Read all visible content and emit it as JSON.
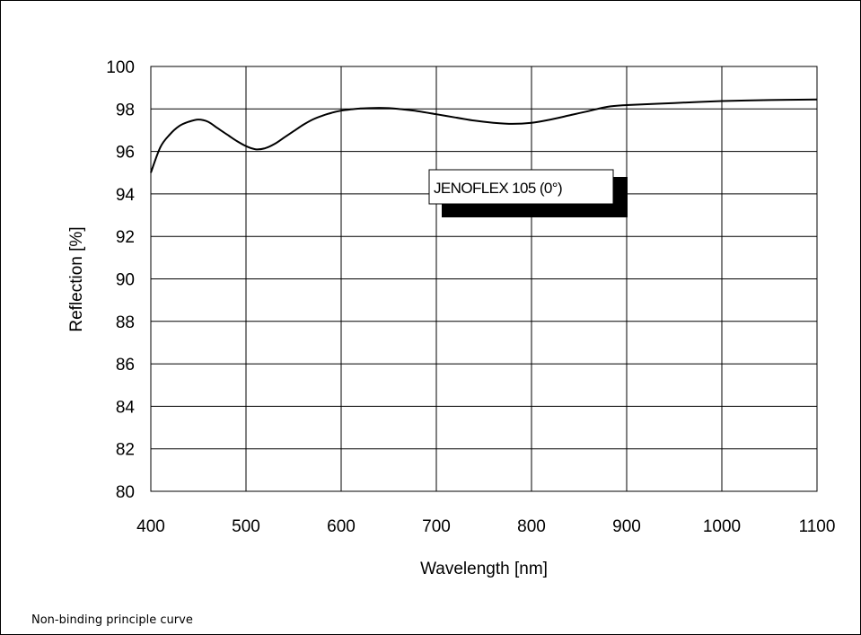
{
  "footnote": "Non-binding principle curve",
  "chart_data": {
    "type": "line",
    "title": "",
    "xlabel": "Wavelength [nm]",
    "ylabel": "Reflection [%]",
    "xlim": [
      400,
      1100
    ],
    "ylim": [
      80,
      100
    ],
    "xticks": [
      400,
      500,
      600,
      700,
      800,
      900,
      1000,
      1100
    ],
    "yticks": [
      80,
      82,
      84,
      86,
      88,
      90,
      92,
      94,
      96,
      98,
      100
    ],
    "grid": true,
    "legend": {
      "placement": "center",
      "entries": [
        "JENOFLEX 105 (0°)"
      ]
    },
    "series": [
      {
        "name": "JENOFLEX 105 (0°)",
        "color": "#000000",
        "x": [
          400,
          410,
          420,
          430,
          440,
          450,
          460,
          470,
          480,
          490,
          500,
          510,
          520,
          530,
          540,
          550,
          560,
          570,
          580,
          590,
          600,
          610,
          620,
          630,
          640,
          650,
          660,
          680,
          700,
          720,
          740,
          760,
          780,
          800,
          820,
          840,
          860,
          880,
          900,
          950,
          1000,
          1050,
          1100
        ],
        "y": [
          95.0,
          96.2,
          96.8,
          97.2,
          97.4,
          97.5,
          97.4,
          97.1,
          96.8,
          96.5,
          96.25,
          96.1,
          96.15,
          96.35,
          96.65,
          96.95,
          97.25,
          97.5,
          97.68,
          97.82,
          97.92,
          97.98,
          98.02,
          98.04,
          98.05,
          98.04,
          98.0,
          97.9,
          97.75,
          97.6,
          97.45,
          97.35,
          97.3,
          97.35,
          97.5,
          97.7,
          97.9,
          98.1,
          98.18,
          98.28,
          98.37,
          98.42,
          98.45
        ]
      }
    ]
  }
}
